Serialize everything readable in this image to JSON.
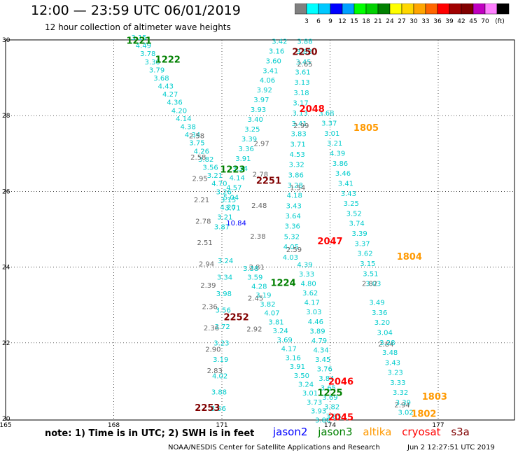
{
  "header": {
    "title": "12:00 — 23:59 UTC 06/01/2019",
    "subtitle": "12 hour collection of altimeter wave heights"
  },
  "colorbar": {
    "colors": [
      "#808080",
      "#00ffff",
      "#00c8ff",
      "#0000ff",
      "#00a0ff",
      "#00ff00",
      "#00d000",
      "#008000",
      "#ffff00",
      "#ffd700",
      "#ffa500",
      "#ff6600",
      "#ff0000",
      "#a00000",
      "#800000",
      "#c000c0",
      "#ff80ff",
      "#000000"
    ],
    "labels": [
      "3",
      "6",
      "9",
      "12",
      "15",
      "18",
      "21",
      "24",
      "27",
      "30",
      "33",
      "36",
      "39",
      "42",
      "45",
      "70",
      "(ft)"
    ]
  },
  "map": {
    "x_ticks": [
      "165",
      "168",
      "171",
      "174",
      "177"
    ],
    "y_ticks": [
      "30",
      "28",
      "26",
      "24",
      "22",
      "20"
    ],
    "time_labels": [
      {
        "text": "1221",
        "lon": 168.7,
        "lat": 29.9,
        "color": "#008000"
      },
      {
        "text": "1222",
        "lon": 169.5,
        "lat": 29.4,
        "color": "#008000"
      },
      {
        "text": "1223",
        "lon": 171.3,
        "lat": 26.5,
        "color": "#008000"
      },
      {
        "text": "1224",
        "lon": 172.7,
        "lat": 23.5,
        "color": "#008000"
      },
      {
        "text": "1225",
        "lon": 174.0,
        "lat": 20.6,
        "color": "#008000"
      },
      {
        "text": "2250",
        "lon": 173.3,
        "lat": 29.6,
        "color": "#800000"
      },
      {
        "text": "2251",
        "lon": 172.3,
        "lat": 26.2,
        "color": "#800000"
      },
      {
        "text": "2252",
        "lon": 171.4,
        "lat": 22.6,
        "color": "#800000"
      },
      {
        "text": "2253",
        "lon": 170.6,
        "lat": 20.2,
        "color": "#800000"
      },
      {
        "text": "2048",
        "lon": 173.5,
        "lat": 28.1,
        "color": "#ff0000"
      },
      {
        "text": "2047",
        "lon": 174.0,
        "lat": 24.6,
        "color": "#ff0000"
      },
      {
        "text": "2046",
        "lon": 174.3,
        "lat": 20.9,
        "color": "#ff0000"
      },
      {
        "text": "2045",
        "lon": 174.3,
        "lat": 19.95,
        "color": "#ff0000"
      },
      {
        "text": "1805",
        "lon": 175.0,
        "lat": 27.6,
        "color": "#ff9900"
      },
      {
        "text": "1804",
        "lon": 176.2,
        "lat": 24.2,
        "color": "#ff9900"
      },
      {
        "text": "1803",
        "lon": 176.9,
        "lat": 20.5,
        "color": "#ff9900"
      },
      {
        "text": "1802",
        "lon": 176.6,
        "lat": 20.05,
        "color": "#ff9900"
      }
    ],
    "tracks": [
      {
        "color": "#00cccc",
        "lon0": 168.7,
        "lat0": 30.0,
        "lon1": 171.3,
        "lat1": 25.5,
        "values": [
          "3.15",
          "4.49",
          "3.78",
          "3.30",
          "3.79",
          "3.68",
          "4.43",
          "4.27",
          "4.36",
          "4.20",
          "4.14",
          "4.38",
          "4.34",
          "3.75",
          "4.26",
          "3.82",
          "3.56",
          "3.21",
          "4.70",
          "3.26",
          "3.15",
          "3.71"
        ]
      },
      {
        "color": "#00cccc",
        "lon0": 171.1,
        "lat0": 24.1,
        "lon1": 170.9,
        "lat1": 20.2,
        "values": [
          "3.24",
          "3.34",
          "3.98",
          "3.56",
          "3.72",
          "3.23",
          "3.19",
          "4.02",
          "3.88",
          "3.56"
        ]
      },
      {
        "color": "#666666",
        "lon0": 170.3,
        "lat0": 27.4,
        "lon1": 170.8,
        "lat1": 21.2,
        "values": [
          "2.58",
          "2.58",
          "2.95",
          "2.21",
          "2.78",
          "2.51",
          "2.94",
          "2.39",
          "2.36",
          "2.36",
          "2.90",
          "2.83"
        ]
      },
      {
        "color": "#00cccc",
        "lon0": 172.6,
        "lat0": 29.9,
        "lon1": 171.0,
        "lat1": 25.0,
        "values": [
          "3.42",
          "3.16",
          "3.60",
          "3.41",
          "4.06",
          "3.92",
          "3.97",
          "3.93",
          "3.40",
          "3.25",
          "3.39",
          "3.36",
          "3.91",
          "3.34",
          "4.14",
          "4.57",
          "5.04",
          "4.20",
          "3.21",
          "3.87"
        ]
      },
      {
        "color": "#666666",
        "lon0": 172.1,
        "lat0": 27.2,
        "lon1": 171.9,
        "lat1": 22.3,
        "values": [
          "2.97",
          "2.78",
          "2.48",
          "2.38",
          "2.81",
          "2.45",
          "2.92"
        ]
      },
      {
        "color": "#00cccc",
        "lon0": 171.8,
        "lat0": 23.9,
        "lon1": 173.8,
        "lat1": 19.9,
        "values": [
          "3.38",
          "3.59",
          "4.28",
          "3.19",
          "3.82",
          "4.07",
          "3.81",
          "3.24",
          "3.69",
          "4.17",
          "3.16",
          "3.91",
          "3.50",
          "3.24",
          "3.01",
          "3.73",
          "3.93",
          "3.88"
        ]
      },
      {
        "color": "#00cccc",
        "lon0": 173.3,
        "lat0": 29.9,
        "lon1": 172.9,
        "lat1": 24.2,
        "values": [
          "3.88",
          "3.82",
          "3.45",
          "3.61",
          "3.13",
          "3.18",
          "3.17",
          "3.13",
          "3.41",
          "3.83",
          "3.71",
          "4.53",
          "3.32",
          "3.86",
          "3.28",
          "4.18",
          "3.43",
          "3.64",
          "3.36",
          "5.32",
          "4.05",
          "4.03"
        ]
      },
      {
        "color": "#666666",
        "lon0": 173.3,
        "lat0": 29.3,
        "lon1": 173.0,
        "lat1": 24.4,
        "values": [
          "2.65",
          "2.99",
          "1.54",
          "2.59"
        ]
      },
      {
        "color": "#00cccc",
        "lon0": 173.3,
        "lat0": 24.0,
        "lon1": 174.1,
        "lat1": 20.0,
        "values": [
          "4.39",
          "3.33",
          "4.80",
          "3.62",
          "4.17",
          "3.03",
          "4.46",
          "3.89",
          "4.79",
          "4.34",
          "3.45",
          "3.76",
          "3.84",
          "3.65",
          "3.69",
          "3.82",
          "3.85"
        ]
      },
      {
        "color": "#00cccc",
        "lon0": 173.9,
        "lat0": 28.0,
        "lon1": 175.2,
        "lat1": 23.5,
        "values": [
          "3.68",
          "3.37",
          "3.01",
          "3.21",
          "4.39",
          "3.86",
          "3.46",
          "3.41",
          "3.43",
          "3.25",
          "3.52",
          "3.74",
          "3.39",
          "3.37",
          "3.62",
          "3.15",
          "3.51",
          "3.03"
        ]
      },
      {
        "color": "#666666",
        "lon0": 175.1,
        "lat0": 23.5,
        "lon1": 176.0,
        "lat1": 20.3,
        "values": [
          "2.82",
          "2.84",
          "2.94"
        ]
      },
      {
        "color": "#00cccc",
        "lon0": 175.3,
        "lat0": 23.0,
        "lon1": 176.1,
        "lat1": 20.1,
        "values": [
          "3.49",
          "3.36",
          "3.20",
          "3.04",
          "3.28",
          "3.48",
          "3.43",
          "3.23",
          "3.33",
          "3.32",
          "3.39",
          "3.02"
        ]
      },
      {
        "color": "#0000ff",
        "lon0": 171.4,
        "lat0": 25.1,
        "lon1": 171.4,
        "lat1": 25.1,
        "values": [
          "10.84"
        ]
      }
    ]
  },
  "note": "note:  1) Time is in UTC;  2) SWH is in feet",
  "legend": [
    {
      "label": "jason2",
      "color": "#0000ff"
    },
    {
      "label": "jason3",
      "color": "#008000"
    },
    {
      "label": "altika",
      "color": "#ff9900"
    },
    {
      "label": "cryosat",
      "color": "#ff0000"
    },
    {
      "label": "s3a",
      "color": "#800000"
    }
  ],
  "footer": "NOAA/NESDIS Center for Satellite Applications and Research",
  "stamp": "Jun  2 12:27:51 UTC 2019"
}
